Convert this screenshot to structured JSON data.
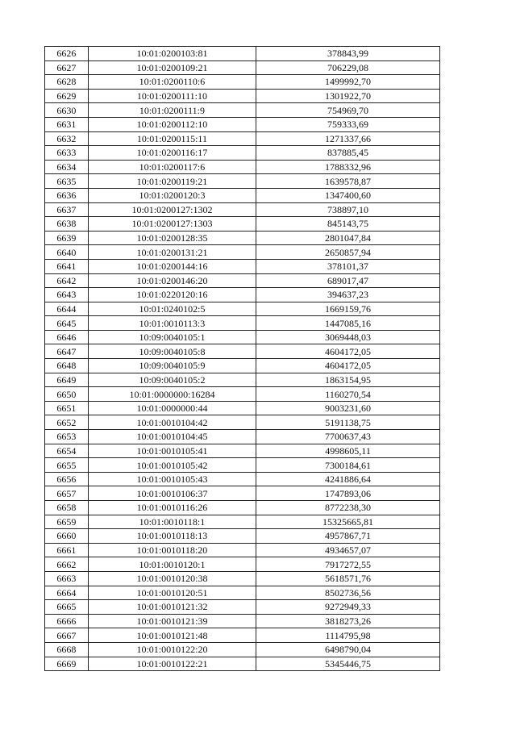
{
  "table": {
    "rows": [
      [
        "6626",
        "10:01:0200103:81",
        "378843,99"
      ],
      [
        "6627",
        "10:01:0200109:21",
        "706229,08"
      ],
      [
        "6628",
        "10:01:0200110:6",
        "1499992,70"
      ],
      [
        "6629",
        "10:01:0200111:10",
        "1301922,70"
      ],
      [
        "6630",
        "10:01:0200111:9",
        "754969,70"
      ],
      [
        "6631",
        "10:01:0200112:10",
        "759333,69"
      ],
      [
        "6632",
        "10:01:0200115:11",
        "1271337,66"
      ],
      [
        "6633",
        "10:01:0200116:17",
        "837885,45"
      ],
      [
        "6634",
        "10:01:0200117:6",
        "1788332,96"
      ],
      [
        "6635",
        "10:01:0200119:21",
        "1639578,87"
      ],
      [
        "6636",
        "10:01:0200120:3",
        "1347400,60"
      ],
      [
        "6637",
        "10:01:0200127:1302",
        "738897,10"
      ],
      [
        "6638",
        "10:01:0200127:1303",
        "845143,75"
      ],
      [
        "6639",
        "10:01:0200128:35",
        "2801047,84"
      ],
      [
        "6640",
        "10:01:0200131:21",
        "2650857,94"
      ],
      [
        "6641",
        "10:01:0200144:16",
        "378101,37"
      ],
      [
        "6642",
        "10:01:0200146:20",
        "689017,47"
      ],
      [
        "6643",
        "10:01:0220120:16",
        "394637,23"
      ],
      [
        "6644",
        "10:01:0240102:5",
        "1669159,76"
      ],
      [
        "6645",
        "10:01:0010113:3",
        "1447085,16"
      ],
      [
        "6646",
        "10:09:0040105:1",
        "3069448,03"
      ],
      [
        "6647",
        "10:09:0040105:8",
        "4604172,05"
      ],
      [
        "6648",
        "10:09:0040105:9",
        "4604172,05"
      ],
      [
        "6649",
        "10:09:0040105:2",
        "1863154,95"
      ],
      [
        "6650",
        "10:01:0000000:16284",
        "1160270,54"
      ],
      [
        "6651",
        "10:01:0000000:44",
        "9003231,60"
      ],
      [
        "6652",
        "10:01:0010104:42",
        "5191138,75"
      ],
      [
        "6653",
        "10:01:0010104:45",
        "7700637,43"
      ],
      [
        "6654",
        "10:01:0010105:41",
        "4998605,11"
      ],
      [
        "6655",
        "10:01:0010105:42",
        "7300184,61"
      ],
      [
        "6656",
        "10:01:0010105:43",
        "4241886,64"
      ],
      [
        "6657",
        "10:01:0010106:37",
        "1747893,06"
      ],
      [
        "6658",
        "10:01:0010116:26",
        "8772238,30"
      ],
      [
        "6659",
        "10:01:0010118:1",
        "15325665,81"
      ],
      [
        "6660",
        "10:01:0010118:13",
        "4957867,71"
      ],
      [
        "6661",
        "10:01:0010118:20",
        "4934657,07"
      ],
      [
        "6662",
        "10:01:0010120:1",
        "7917272,55"
      ],
      [
        "6663",
        "10:01:0010120:38",
        "5618571,76"
      ],
      [
        "6664",
        "10:01:0010120:51",
        "8502736,56"
      ],
      [
        "6665",
        "10:01:0010121:32",
        "9272949,33"
      ],
      [
        "6666",
        "10:01:0010121:39",
        "3818273,26"
      ],
      [
        "6667",
        "10:01:0010121:48",
        "1114795,98"
      ],
      [
        "6668",
        "10:01:0010122:20",
        "6498790,04"
      ],
      [
        "6669",
        "10:01:0010122:21",
        "5345446,75"
      ]
    ]
  }
}
